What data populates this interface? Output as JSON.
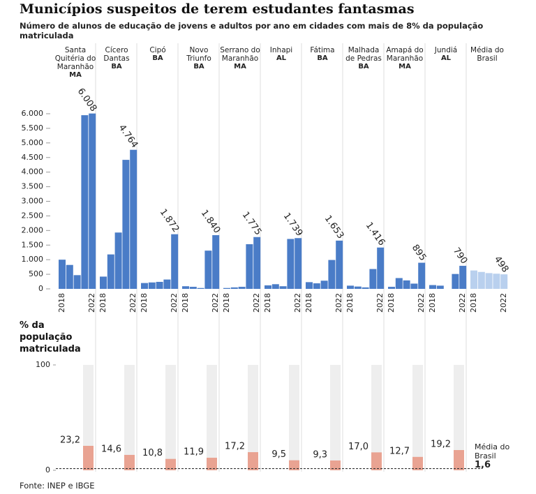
{
  "chart_data": [
    {
      "type": "bar",
      "title": "Municípios suspeitos de terem estudantes fantasmas",
      "subtitle": "Número de alunos de educação de jovens e adultos por ano em cidades com mais de 8% da população matriculada",
      "categories": [
        "2018",
        null,
        null,
        null,
        "2022"
      ],
      "ylim": [
        0,
        6000
      ],
      "yticks": [
        0,
        500,
        {
          "value": 1000,
          "label": "1.000"
        },
        {
          "value": 1500,
          "label": "1.500"
        },
        {
          "value": 2000,
          "label": "2.000"
        },
        {
          "value": 2500,
          "label": "2.500"
        },
        {
          "value": 3000,
          "label": "3.000"
        },
        {
          "value": 3500,
          "label": "3.500"
        },
        {
          "value": 4000,
          "label": "4.000"
        },
        {
          "value": 4500,
          "label": "4.500"
        },
        {
          "value": 5000,
          "label": "5.000"
        },
        {
          "value": 5500,
          "label": "5.500"
        },
        {
          "value": 6000,
          "label": "6.000"
        }
      ],
      "grid": false,
      "series": [
        {
          "name": "Santa Quitéria do Maranhão",
          "state": "MA",
          "color": "#4a7cc7",
          "values": [
            1000,
            820,
            470,
            5950,
            6008
          ],
          "value_labels": [
            null,
            null,
            null,
            null,
            "6.008"
          ]
        },
        {
          "name": "Cícero Dantas",
          "state": "BA",
          "color": "#4a7cc7",
          "values": [
            420,
            1180,
            1930,
            4420,
            4764
          ],
          "value_labels": [
            null,
            null,
            null,
            null,
            "4.764"
          ]
        },
        {
          "name": "Cipó",
          "state": "BA",
          "color": "#4a7cc7",
          "values": [
            200,
            220,
            240,
            320,
            1872
          ],
          "value_labels": [
            null,
            null,
            null,
            null,
            "1.872"
          ]
        },
        {
          "name": "Novo Triunfo",
          "state": "BA",
          "color": "#4a7cc7",
          "values": [
            90,
            70,
            30,
            1310,
            1840
          ],
          "value_labels": [
            null,
            null,
            null,
            null,
            "1.840"
          ]
        },
        {
          "name": "Serrano do Maranhão",
          "state": "MA",
          "color": "#4a7cc7",
          "values": [
            30,
            50,
            70,
            1530,
            1775
          ],
          "value_labels": [
            null,
            null,
            null,
            null,
            "1.775"
          ]
        },
        {
          "name": "Inhapi",
          "state": "AL",
          "color": "#4a7cc7",
          "values": [
            120,
            160,
            90,
            1710,
            1739
          ],
          "value_labels": [
            null,
            null,
            null,
            null,
            "1.739"
          ]
        },
        {
          "name": "Fátima",
          "state": "BA",
          "color": "#4a7cc7",
          "values": [
            230,
            190,
            280,
            990,
            1653
          ],
          "value_labels": [
            null,
            null,
            null,
            null,
            "1.653"
          ]
        },
        {
          "name": "Malhada de Pedras",
          "state": "BA",
          "color": "#4a7cc7",
          "values": [
            110,
            80,
            50,
            680,
            1416
          ],
          "value_labels": [
            null,
            null,
            null,
            null,
            "1.416"
          ]
        },
        {
          "name": "Amapá do Maranhão",
          "state": "MA",
          "color": "#4a7cc7",
          "values": [
            70,
            370,
            290,
            180,
            895
          ],
          "value_labels": [
            null,
            null,
            null,
            null,
            "895"
          ]
        },
        {
          "name": "Jundiá",
          "state": "AL",
          "color": "#4a7cc7",
          "values": [
            130,
            110,
            null,
            510,
            790
          ],
          "value_labels": [
            null,
            null,
            null,
            null,
            "790"
          ]
        },
        {
          "name": "Média do Brasil",
          "color": "#b9d0ee",
          "values": [
            630,
            580,
            540,
            520,
            498
          ],
          "value_labels": [
            null,
            null,
            null,
            null,
            "498"
          ]
        }
      ]
    },
    {
      "type": "bar",
      "ylabel": "% da população matriculada",
      "ylim": [
        0,
        100
      ],
      "yticks": [
        0,
        100
      ],
      "color": "#e9a392",
      "track_color": "#eeeeee",
      "values": [
        23.2,
        14.6,
        10.8,
        11.9,
        17.2,
        9.5,
        9.3,
        17.0,
        12.7,
        19.2
      ],
      "value_labels": [
        "23,2",
        "14,6",
        "10,8",
        "11,9",
        "17,2",
        "9,5",
        "9,3",
        "17,0",
        "12,7",
        "19,2"
      ],
      "reference": {
        "name": "Média do Brasil",
        "value": 1.6,
        "label": "1,6"
      },
      "source": "Fonte: INEP e IBGE"
    }
  ]
}
